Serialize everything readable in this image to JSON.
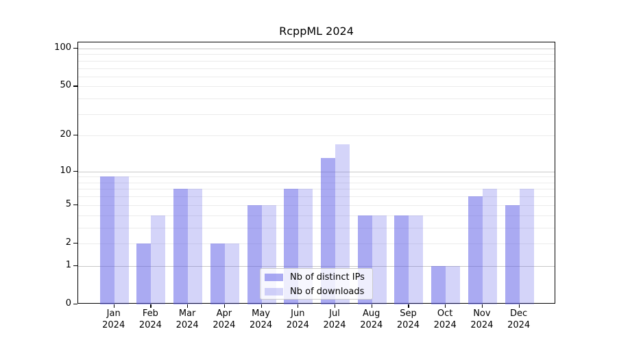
{
  "figure": {
    "background": "#ffffff"
  },
  "chart_data": {
    "type": "bar",
    "title": "RcppML 2024",
    "categories": [
      "Jan 2024",
      "Feb 2024",
      "Mar 2024",
      "Apr 2024",
      "May 2024",
      "Jun 2024",
      "Jul 2024",
      "Aug 2024",
      "Sep 2024",
      "Oct 2024",
      "Nov 2024",
      "Dec 2024"
    ],
    "month_labels": [
      "Jan",
      "Feb",
      "Mar",
      "Apr",
      "May",
      "Jun",
      "Jul",
      "Aug",
      "Sep",
      "Oct",
      "Nov",
      "Dec"
    ],
    "year_label": "2024",
    "series": [
      {
        "name": "Nb of distinct IPs",
        "values": [
          9,
          2,
          7,
          2,
          5,
          7,
          13,
          4,
          4,
          1,
          6,
          5
        ],
        "fill": "rgba(85,85,230,0.5)"
      },
      {
        "name": "Nb of downloads",
        "values": [
          9,
          4,
          7,
          2,
          5,
          7,
          17,
          4,
          4,
          1,
          7,
          7
        ],
        "fill": "rgba(85,85,230,0.25)"
      }
    ],
    "xlabel": "",
    "ylabel": "",
    "y_scale": "log1p",
    "ylim": [
      0,
      110
    ],
    "y_ticks": [
      100,
      50,
      20,
      10,
      5,
      2,
      1,
      0
    ],
    "y_major_grid": [
      1,
      10,
      100
    ],
    "y_minor_grid": [
      2,
      3,
      4,
      5,
      6,
      7,
      8,
      9,
      20,
      30,
      40,
      50,
      60,
      70,
      80,
      90
    ],
    "grid": "on",
    "legend_position": "lower center",
    "colors": {
      "bar_base": "#5555e6",
      "major_grid": "#c8c8c8",
      "minor_grid": "#ebebeb",
      "spine": "#000000",
      "text": "#000000"
    }
  }
}
